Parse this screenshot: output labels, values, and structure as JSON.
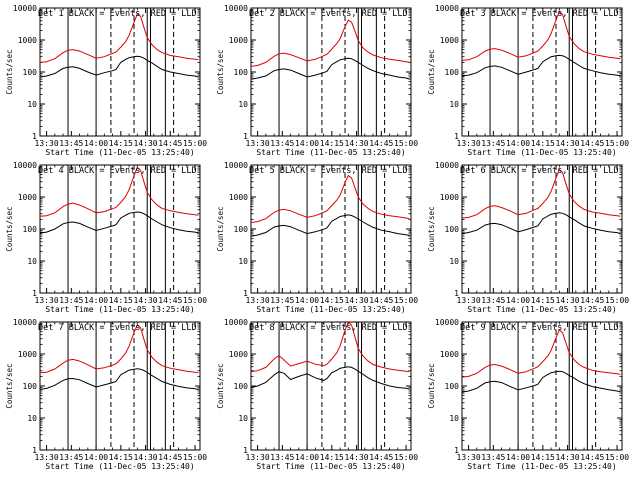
{
  "figure": {
    "x_title": "Start Time (11-Dec-05 13:25:40)",
    "y_title": "Counts/sec",
    "x_ticks": [
      "13:30",
      "13:45",
      "14:00",
      "14:15",
      "14:30",
      "14:45",
      "15:00"
    ],
    "y_ticks": [
      "1",
      "10",
      "100",
      "1000",
      "10000"
    ],
    "colors": {
      "events": "#000000",
      "lld": "#e00000",
      "axes": "#000000",
      "background": "#ffffff"
    }
  },
  "chart_data": [
    {
      "type": "line",
      "title": "Det 1  BLACK = Events, RED = LLD",
      "ylog": true,
      "ylim": [
        1,
        10000
      ],
      "x": [
        "13:26",
        "13:30",
        "13:35",
        "13:40",
        "13:43",
        "13:46",
        "13:50",
        "13:55",
        "14:00",
        "14:05",
        "14:10",
        "14:12",
        "14:15",
        "14:18",
        "14:20",
        "14:23",
        "14:25",
        "14:27",
        "14:29",
        "14:31",
        "14:34",
        "14:37",
        "14:40",
        "14:45",
        "14:50",
        "14:55",
        "15:00",
        "15:02"
      ],
      "series": [
        {
          "name": "BLACK = Events",
          "values": [
            70,
            75,
            90,
            130,
            140,
            145,
            130,
            100,
            80,
            95,
            110,
            120,
            200,
            250,
            280,
            300,
            310,
            300,
            270,
            230,
            190,
            150,
            120,
            100,
            90,
            80,
            75,
            70
          ]
        },
        {
          "name": "RED = LLD",
          "values": [
            200,
            210,
            260,
            400,
            480,
            500,
            450,
            350,
            270,
            300,
            380,
            420,
            600,
            900,
            1400,
            3500,
            6500,
            5500,
            2500,
            1200,
            700,
            500,
            400,
            330,
            300,
            270,
            250,
            240
          ]
        }
      ]
    },
    {
      "type": "line",
      "title": "Det 2  BLACK = Events, RED = LLD",
      "ylog": true,
      "ylim": [
        1,
        10000
      ],
      "x": [
        "13:26",
        "13:30",
        "13:35",
        "13:40",
        "13:43",
        "13:46",
        "13:50",
        "13:55",
        "14:00",
        "14:05",
        "14:10",
        "14:12",
        "14:15",
        "14:18",
        "14:20",
        "14:23",
        "14:25",
        "14:27",
        "14:29",
        "14:31",
        "14:34",
        "14:37",
        "14:40",
        "14:45",
        "14:50",
        "14:55",
        "15:00",
        "15:02"
      ],
      "series": [
        {
          "name": "BLACK = Events",
          "values": [
            60,
            65,
            75,
            110,
            120,
            125,
            115,
            90,
            70,
            80,
            95,
            105,
            170,
            210,
            240,
            260,
            270,
            260,
            230,
            200,
            160,
            130,
            110,
            90,
            80,
            70,
            65,
            60
          ]
        },
        {
          "name": "RED = LLD",
          "values": [
            150,
            160,
            200,
            310,
            370,
            390,
            350,
            280,
            220,
            250,
            320,
            360,
            520,
            780,
            1100,
            2600,
            4200,
            3600,
            1900,
            950,
            560,
            420,
            340,
            280,
            250,
            230,
            210,
            200
          ]
        }
      ]
    },
    {
      "type": "line",
      "title": "Det 3  BLACK = Events, RED = LLD",
      "ylog": true,
      "ylim": [
        1,
        10000
      ],
      "x": [
        "13:26",
        "13:30",
        "13:35",
        "13:40",
        "13:43",
        "13:46",
        "13:50",
        "13:55",
        "14:00",
        "14:05",
        "14:10",
        "14:12",
        "14:15",
        "14:18",
        "14:20",
        "14:23",
        "14:25",
        "14:27",
        "14:29",
        "14:31",
        "14:34",
        "14:37",
        "14:40",
        "14:45",
        "14:50",
        "14:55",
        "15:00",
        "15:02"
      ],
      "series": [
        {
          "name": "BLACK = Events",
          "values": [
            75,
            80,
            95,
            135,
            150,
            155,
            140,
            110,
            85,
            100,
            120,
            130,
            210,
            260,
            300,
            320,
            330,
            320,
            290,
            250,
            200,
            160,
            130,
            110,
            95,
            85,
            80,
            75
          ]
        },
        {
          "name": "RED = LLD",
          "values": [
            230,
            240,
            300,
            450,
            520,
            540,
            480,
            380,
            290,
            320,
            410,
            450,
            650,
            1000,
            1600,
            4200,
            7800,
            6200,
            2800,
            1300,
            760,
            540,
            430,
            360,
            320,
            290,
            270,
            260
          ]
        }
      ]
    },
    {
      "type": "line",
      "title": "Det 4  BLACK = Events, RED = LLD",
      "ylog": true,
      "ylim": [
        1,
        10000
      ],
      "x": [
        "13:26",
        "13:30",
        "13:35",
        "13:40",
        "13:43",
        "13:46",
        "13:50",
        "13:55",
        "14:00",
        "14:05",
        "14:10",
        "14:12",
        "14:15",
        "14:18",
        "14:20",
        "14:23",
        "14:25",
        "14:27",
        "14:29",
        "14:31",
        "14:34",
        "14:37",
        "14:40",
        "14:45",
        "14:50",
        "14:55",
        "15:00",
        "15:02"
      ],
      "series": [
        {
          "name": "BLACK = Events",
          "values": [
            75,
            80,
            100,
            145,
            160,
            165,
            150,
            115,
            90,
            105,
            125,
            135,
            220,
            270,
            310,
            330,
            340,
            330,
            300,
            260,
            205,
            165,
            135,
            110,
            95,
            85,
            80,
            75
          ]
        },
        {
          "name": "RED = LLD",
          "values": [
            250,
            260,
            320,
            500,
            600,
            640,
            560,
            430,
            320,
            350,
            430,
            470,
            680,
            1050,
            1700,
            4600,
            8500,
            6800,
            3000,
            1400,
            800,
            560,
            440,
            370,
            330,
            300,
            280,
            270
          ]
        }
      ]
    },
    {
      "type": "line",
      "title": "Det 5  BLACK = Events, RED = LLD",
      "ylog": true,
      "ylim": [
        1,
        10000
      ],
      "x": [
        "13:26",
        "13:30",
        "13:35",
        "13:40",
        "13:43",
        "13:46",
        "13:50",
        "13:55",
        "14:00",
        "14:05",
        "14:10",
        "14:12",
        "14:15",
        "14:18",
        "14:20",
        "14:23",
        "14:25",
        "14:27",
        "14:29",
        "14:31",
        "14:34",
        "14:37",
        "14:40",
        "14:45",
        "14:50",
        "14:55",
        "15:00",
        "15:02"
      ],
      "series": [
        {
          "name": "BLACK = Events",
          "values": [
            60,
            65,
            78,
            115,
            125,
            130,
            118,
            92,
            72,
            82,
            98,
            108,
            175,
            215,
            245,
            265,
            275,
            265,
            235,
            205,
            165,
            135,
            112,
            92,
            82,
            72,
            66,
            62
          ]
        },
        {
          "name": "RED = LLD",
          "values": [
            160,
            170,
            210,
            330,
            390,
            410,
            370,
            290,
            230,
            260,
            330,
            370,
            540,
            800,
            1150,
            2800,
            4700,
            3900,
            2000,
            1000,
            590,
            440,
            350,
            290,
            260,
            240,
            220,
            210
          ]
        }
      ]
    },
    {
      "type": "line",
      "title": "Det 6  BLACK = Events, RED = LLD",
      "ylog": true,
      "ylim": [
        1,
        10000
      ],
      "x": [
        "13:26",
        "13:30",
        "13:35",
        "13:40",
        "13:43",
        "13:46",
        "13:50",
        "13:55",
        "14:00",
        "14:05",
        "14:10",
        "14:12",
        "14:15",
        "14:18",
        "14:20",
        "14:23",
        "14:25",
        "14:27",
        "14:29",
        "14:31",
        "14:34",
        "14:37",
        "14:40",
        "14:45",
        "14:50",
        "14:55",
        "15:00",
        "15:02"
      ],
      "series": [
        {
          "name": "BLACK = Events",
          "values": [
            72,
            78,
            92,
            132,
            145,
            150,
            136,
            106,
            82,
            96,
            116,
            126,
            205,
            255,
            290,
            310,
            320,
            310,
            280,
            240,
            195,
            155,
            125,
            105,
            92,
            82,
            77,
            72
          ]
        },
        {
          "name": "RED = LLD",
          "values": [
            220,
            230,
            280,
            430,
            510,
            530,
            470,
            370,
            280,
            310,
            400,
            440,
            630,
            960,
            1500,
            3900,
            7200,
            5800,
            2600,
            1250,
            720,
            520,
            410,
            340,
            310,
            280,
            260,
            250
          ]
        }
      ]
    },
    {
      "type": "line",
      "title": "Det 7  BLACK = Events, RED = LLD",
      "ylog": true,
      "ylim": [
        1,
        10000
      ],
      "x": [
        "13:26",
        "13:30",
        "13:35",
        "13:40",
        "13:43",
        "13:46",
        "13:50",
        "13:55",
        "14:00",
        "14:05",
        "14:10",
        "14:12",
        "14:15",
        "14:18",
        "14:20",
        "14:23",
        "14:25",
        "14:27",
        "14:29",
        "14:31",
        "14:34",
        "14:37",
        "14:40",
        "14:45",
        "14:50",
        "14:55",
        "15:00",
        "15:02"
      ],
      "series": [
        {
          "name": "BLACK = Events",
          "values": [
            78,
            84,
            105,
            150,
            168,
            172,
            156,
            120,
            93,
            108,
            128,
            138,
            225,
            275,
            315,
            335,
            345,
            335,
            305,
            265,
            210,
            170,
            138,
            112,
            97,
            87,
            82,
            77
          ]
        },
        {
          "name": "RED = LLD",
          "values": [
            260,
            270,
            340,
            520,
            640,
            680,
            600,
            460,
            340,
            370,
            450,
            490,
            700,
            1100,
            1750,
            4700,
            8200,
            6600,
            2900,
            1350,
            780,
            550,
            430,
            360,
            320,
            290,
            270,
            260
          ]
        }
      ]
    },
    {
      "type": "line",
      "title": "Det 8  BLACK = Events, RED = LLD",
      "ylog": true,
      "ylim": [
        1,
        10000
      ],
      "x": [
        "13:26",
        "13:30",
        "13:35",
        "13:40",
        "13:43",
        "13:46",
        "13:50",
        "13:55",
        "14:00",
        "14:05",
        "14:10",
        "14:12",
        "14:15",
        "14:18",
        "14:20",
        "14:23",
        "14:25",
        "14:27",
        "14:29",
        "14:31",
        "14:34",
        "14:37",
        "14:40",
        "14:45",
        "14:50",
        "14:55",
        "15:00",
        "15:02"
      ],
      "series": [
        {
          "name": "BLACK = Events",
          "values": [
            90,
            100,
            130,
            220,
            280,
            250,
            160,
            200,
            240,
            180,
            150,
            170,
            260,
            310,
            360,
            380,
            400,
            380,
            340,
            290,
            230,
            180,
            150,
            120,
            100,
            90,
            85,
            80
          ]
        },
        {
          "name": "RED = LLD",
          "values": [
            280,
            300,
            380,
            700,
            900,
            650,
            420,
            500,
            600,
            480,
            430,
            480,
            700,
            1100,
            1800,
            5500,
            10000,
            8000,
            3500,
            1500,
            850,
            600,
            470,
            390,
            340,
            310,
            290,
            280
          ]
        }
      ]
    },
    {
      "type": "line",
      "title": "Det 9  BLACK = Events, RED = LLD",
      "ylog": true,
      "ylim": [
        1,
        10000
      ],
      "x": [
        "13:26",
        "13:30",
        "13:35",
        "13:40",
        "13:43",
        "13:46",
        "13:50",
        "13:55",
        "14:00",
        "14:05",
        "14:10",
        "14:12",
        "14:15",
        "14:18",
        "14:20",
        "14:23",
        "14:25",
        "14:27",
        "14:29",
        "14:31",
        "14:34",
        "14:37",
        "14:40",
        "14:45",
        "14:50",
        "14:55",
        "15:00",
        "15:02"
      ],
      "series": [
        {
          "name": "BLACK = Events",
          "values": [
            65,
            70,
            85,
            125,
            135,
            140,
            128,
            98,
            76,
            88,
            104,
            114,
            185,
            230,
            260,
            280,
            290,
            280,
            250,
            215,
            175,
            140,
            118,
            96,
            86,
            76,
            70,
            66
          ]
        },
        {
          "name": "RED = LLD",
          "values": [
            190,
            200,
            250,
            380,
            450,
            470,
            420,
            330,
            250,
            280,
            360,
            400,
            580,
            860,
            1300,
            3200,
            5600,
            4600,
            2200,
            1100,
            650,
            470,
            380,
            310,
            280,
            260,
            240,
            230
          ]
        }
      ]
    }
  ]
}
